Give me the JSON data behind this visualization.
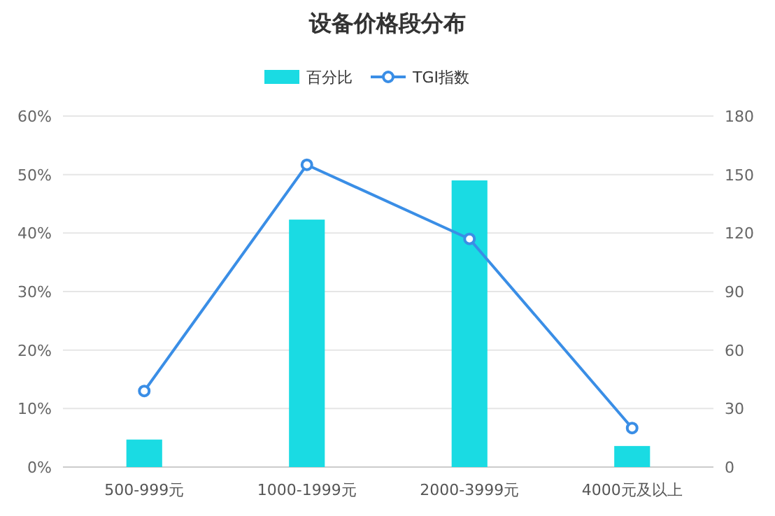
{
  "chart_data": {
    "type": "bar",
    "title": "设备价格段分布",
    "categories": [
      "500-999元",
      "1000-1999元",
      "2000-3999元",
      "4000元及以上"
    ],
    "series": [
      {
        "name": "百分比",
        "color": "#1adbe3",
        "values": [
          4.7,
          42.3,
          49,
          3.6
        ]
      },
      {
        "name": "TGI指数",
        "type": "line",
        "axis": "y2",
        "color": "#3a8ee6",
        "values": [
          39,
          155,
          117,
          20
        ]
      }
    ],
    "ylim": [
      0,
      60
    ],
    "yticks": [
      {
        "value": 0,
        "label": "0%"
      },
      {
        "value": 10,
        "label": "10%"
      },
      {
        "value": 20,
        "label": "20%"
      },
      {
        "value": 30,
        "label": "30%"
      },
      {
        "value": 40,
        "label": "40%"
      },
      {
        "value": 50,
        "label": "50%"
      },
      {
        "value": 60,
        "label": "60%"
      }
    ],
    "y2lim": [
      0,
      180
    ],
    "y2ticks": [
      0,
      30,
      60,
      90,
      120,
      150,
      180
    ],
    "grid": "y",
    "legend": "top",
    "marker": "circle"
  }
}
